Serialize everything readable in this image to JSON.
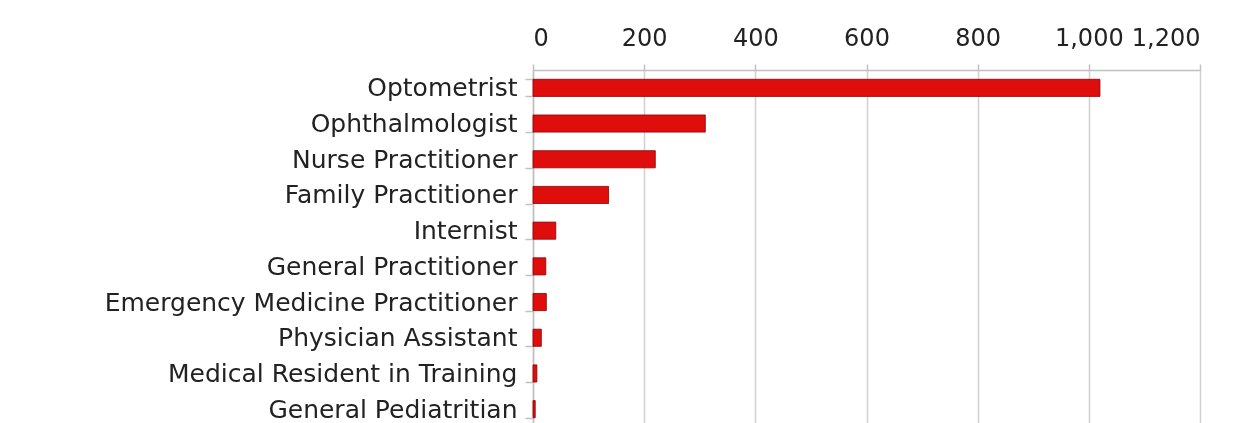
{
  "chart_data": {
    "type": "bar",
    "orientation": "horizontal",
    "categories": [
      "Optometrist",
      "Ophthalmologist",
      "Nurse Practitioner",
      "Family Practitioner",
      "Internist",
      "General Practitioner",
      "Emergency Medicine Practitioner",
      "Physician Assistant",
      "Medical Resident in Training",
      "General Pediatritian"
    ],
    "values": [
      1020,
      310,
      220,
      136,
      41,
      23,
      24,
      15,
      7,
      4
    ],
    "color": "#e00d0d",
    "xlim": [
      0,
      1200
    ],
    "xticks": [
      0,
      200,
      400,
      600,
      800,
      {
        "value": 1000,
        "label": "1,000"
      },
      {
        "value": 1200,
        "label": "1,200"
      }
    ],
    "grid": "x"
  }
}
